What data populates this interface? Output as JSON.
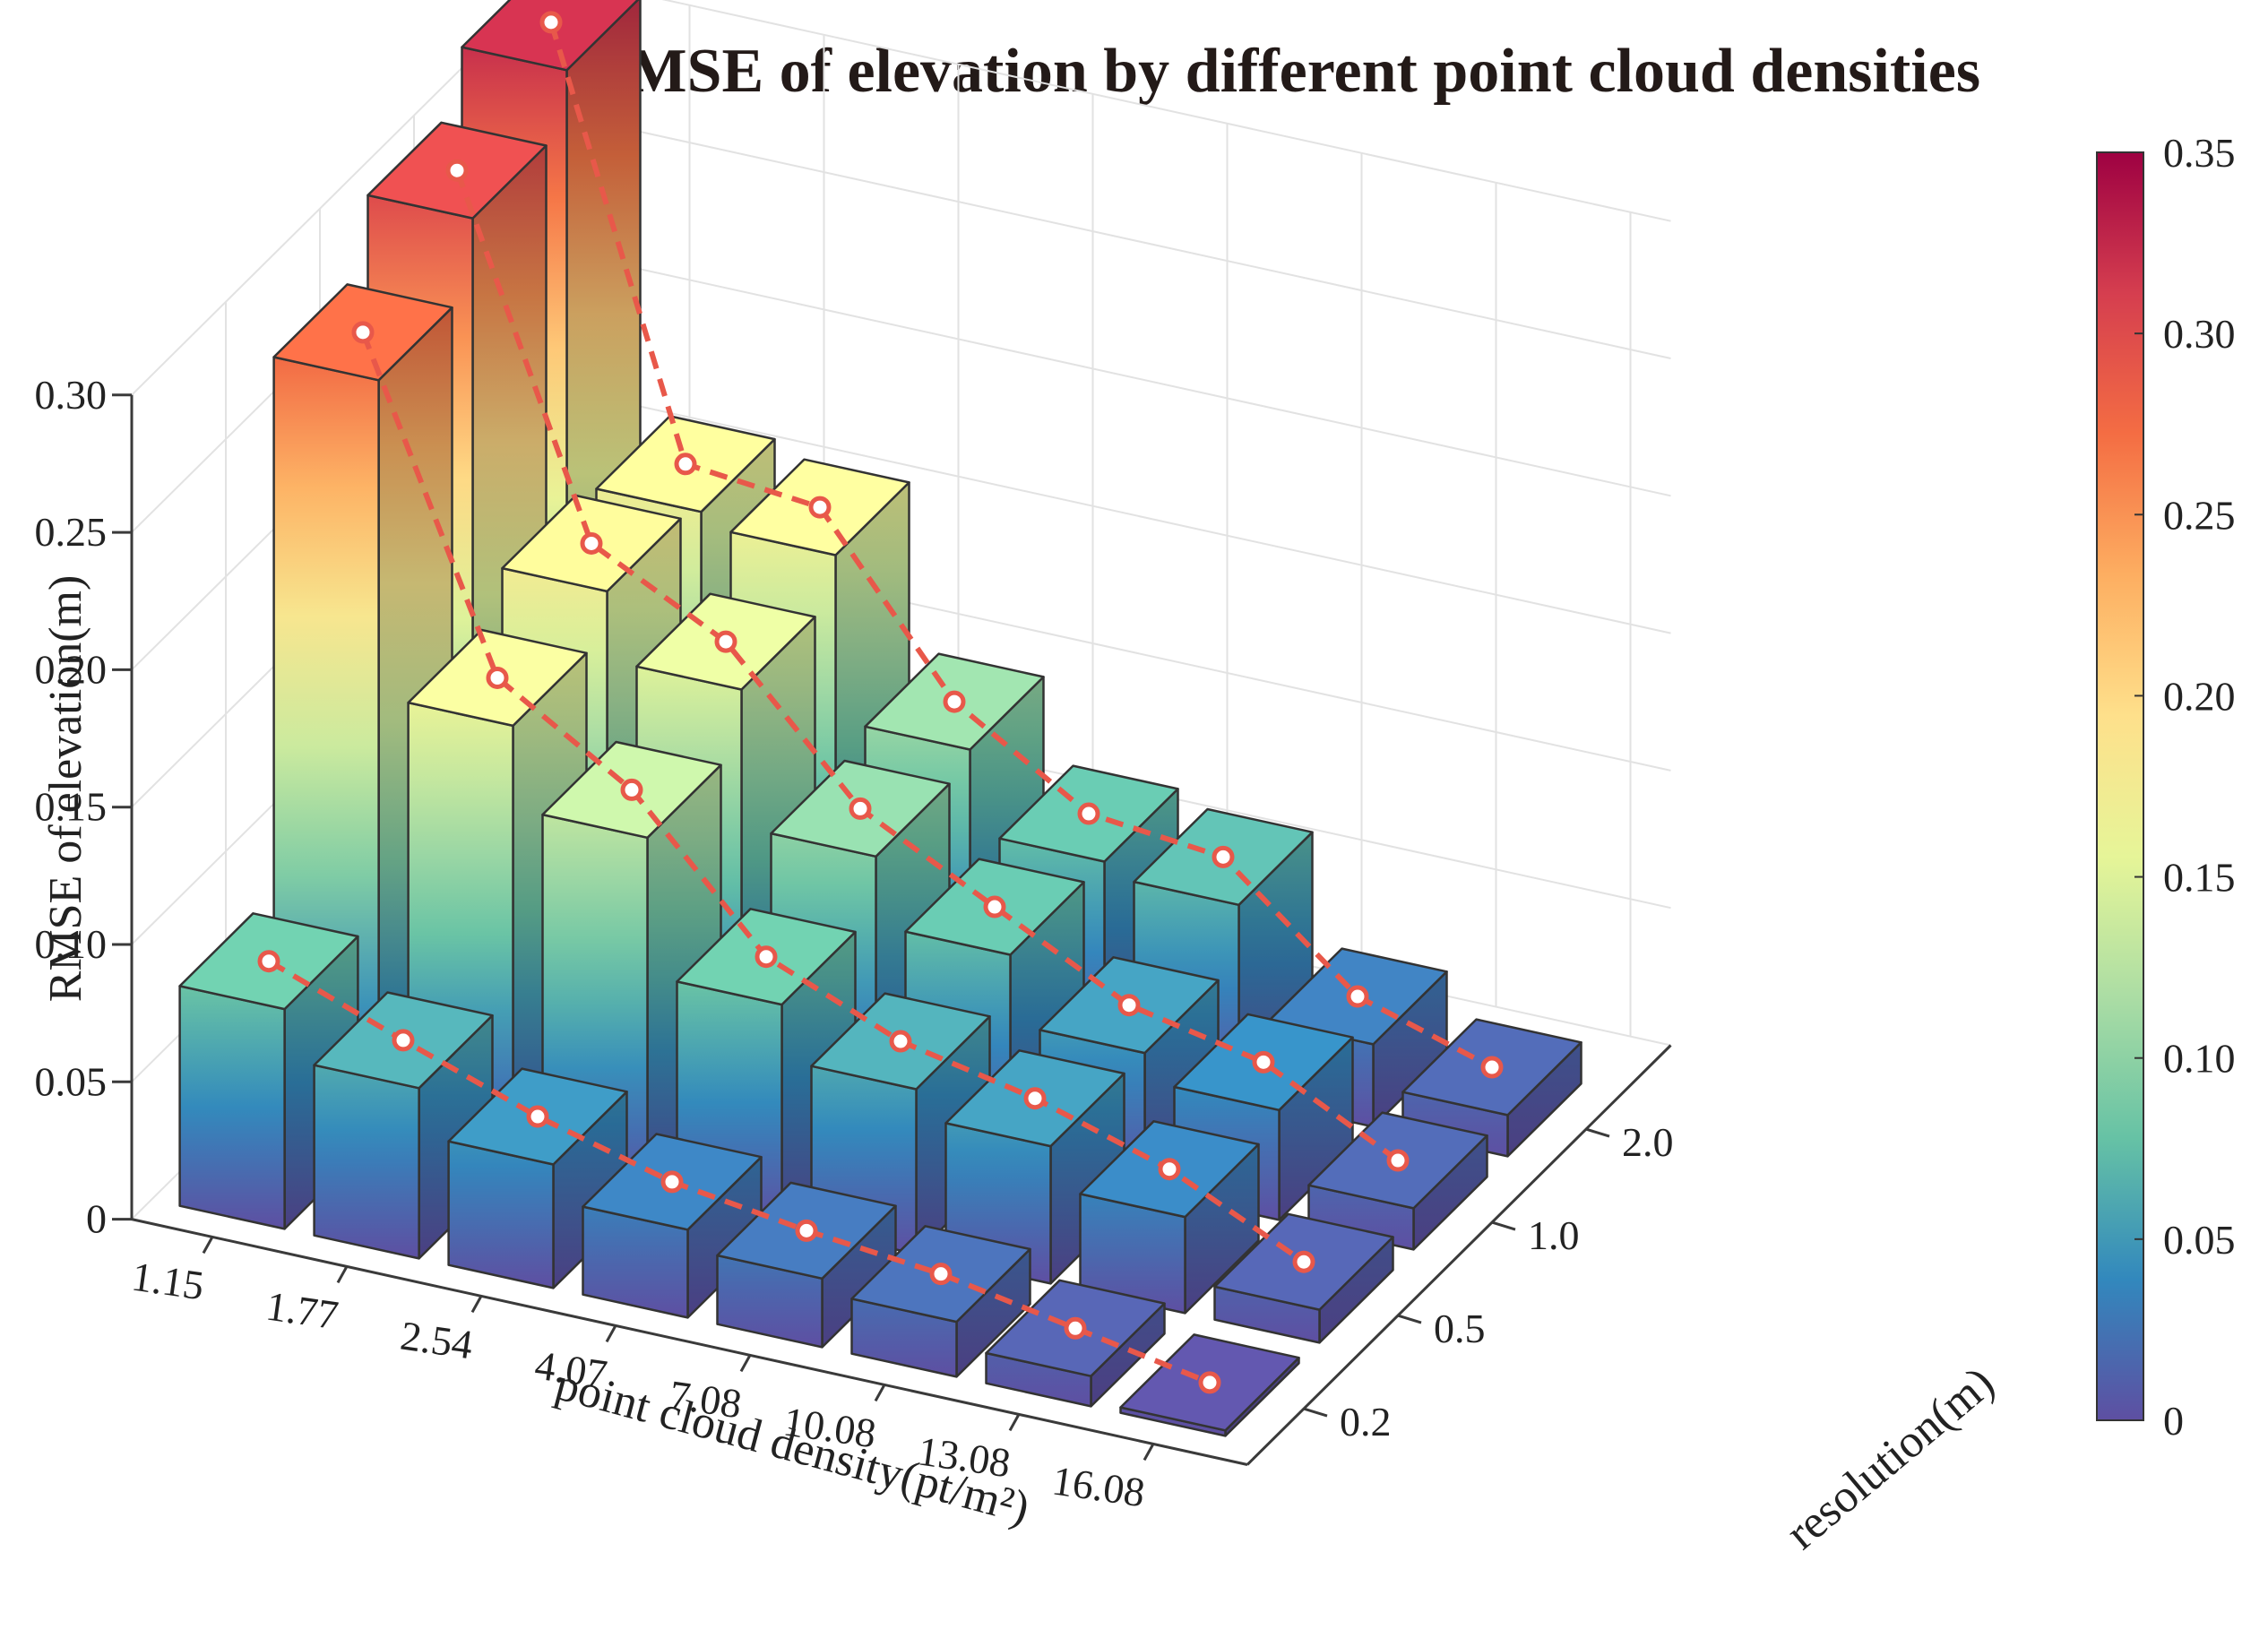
{
  "chart_data": {
    "type": "bar3d",
    "title": "RMSE of elevation by different point cloud densities",
    "xlabel": "point cloud density(pt/m²)",
    "ylabel": "resolution(m)",
    "zlabel": "RMSE of elevation(m)",
    "categories": [
      "1.15",
      "1.77",
      "2.54",
      "4.07",
      "7.08",
      "10.08",
      "13.08",
      "16.08"
    ],
    "resolutions": [
      "0.2",
      "0.5",
      "1.0",
      "2.0"
    ],
    "zlim": [
      0,
      0.3
    ],
    "zticks": [
      "0",
      "0.05",
      "0.10",
      "0.15",
      "0.20",
      "0.25",
      "0.30"
    ],
    "series": [
      {
        "name": "0.2",
        "values": [
          0.08,
          0.062,
          0.045,
          0.032,
          0.025,
          0.02,
          0.011,
          0.002
        ]
      },
      {
        "name": "0.5",
        "values": [
          0.275,
          0.16,
          0.13,
          0.08,
          0.06,
          0.05,
          0.035,
          0.012
        ]
      },
      {
        "name": "1.0",
        "values": [
          0.3,
          0.175,
          0.15,
          0.1,
          0.075,
          0.05,
          0.04,
          0.015
        ]
      },
      {
        "name": "2.0",
        "values": [
          0.32,
          0.17,
          0.165,
          0.105,
          0.075,
          0.07,
          0.03,
          0.015
        ]
      }
    ],
    "colorbar": {
      "range": [
        0,
        0.35
      ],
      "ticks": [
        "0",
        "0.05",
        "0.10",
        "0.15",
        "0.20",
        "0.25",
        "0.30",
        "0.35"
      ],
      "colors": [
        "#5e4fa2",
        "#3288bd",
        "#66c2a5",
        "#abdda4",
        "#e6f598",
        "#fee08b",
        "#fdae61",
        "#f46d43",
        "#d53e4f",
        "#9e0142"
      ]
    },
    "marker_color": "#e8584a",
    "line_style": "dashed"
  }
}
